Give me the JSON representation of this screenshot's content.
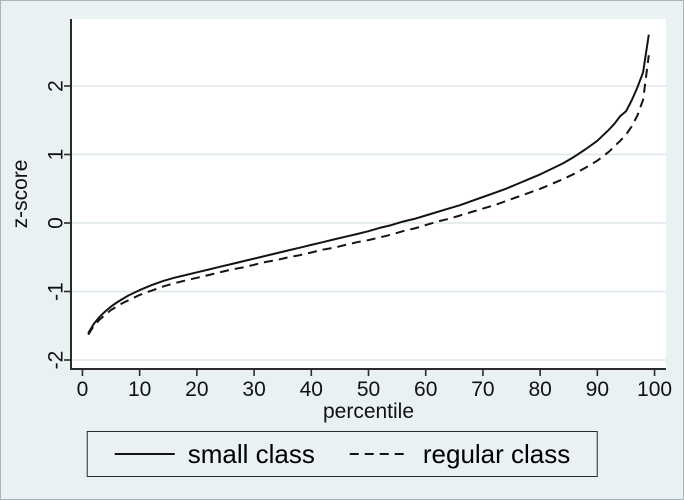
{
  "chart_data": {
    "type": "line",
    "title": "",
    "xlabel": "percentile",
    "ylabel": "z-score",
    "xlim": [
      0,
      100
    ],
    "ylim": [
      -2,
      2.8
    ],
    "xticks": [
      0,
      10,
      20,
      30,
      40,
      50,
      60,
      70,
      80,
      90,
      100
    ],
    "yticks": [
      -2,
      -1,
      0,
      1,
      2
    ],
    "grid": "horizontal-only",
    "legend_position": "bottom-center",
    "colors": {
      "background": "#eaf1f2",
      "plot_background": "#ffffff",
      "gridline": "#dde7ea",
      "axis": "#2b2b2b",
      "line": "#141414",
      "text": "#111111"
    },
    "series": [
      {
        "name": "small class",
        "line_style": "solid",
        "points": [
          [
            1,
            -1.61
          ],
          [
            2,
            -1.47
          ],
          [
            3,
            -1.37
          ],
          [
            4,
            -1.29
          ],
          [
            5,
            -1.22
          ],
          [
            6,
            -1.16
          ],
          [
            7,
            -1.11
          ],
          [
            8,
            -1.06
          ],
          [
            9,
            -1.02
          ],
          [
            10,
            -0.98
          ],
          [
            12,
            -0.91
          ],
          [
            14,
            -0.85
          ],
          [
            16,
            -0.8
          ],
          [
            18,
            -0.76
          ],
          [
            20,
            -0.72
          ],
          [
            22,
            -0.68
          ],
          [
            24,
            -0.64
          ],
          [
            26,
            -0.6
          ],
          [
            28,
            -0.56
          ],
          [
            30,
            -0.52
          ],
          [
            32,
            -0.48
          ],
          [
            34,
            -0.44
          ],
          [
            36,
            -0.4
          ],
          [
            38,
            -0.36
          ],
          [
            40,
            -0.32
          ],
          [
            42,
            -0.28
          ],
          [
            44,
            -0.24
          ],
          [
            46,
            -0.2
          ],
          [
            48,
            -0.16
          ],
          [
            50,
            -0.12
          ],
          [
            52,
            -0.07
          ],
          [
            54,
            -0.03
          ],
          [
            56,
            0.02
          ],
          [
            58,
            0.06
          ],
          [
            60,
            0.11
          ],
          [
            62,
            0.16
          ],
          [
            64,
            0.21
          ],
          [
            66,
            0.26
          ],
          [
            68,
            0.32
          ],
          [
            70,
            0.38
          ],
          [
            72,
            0.44
          ],
          [
            74,
            0.5
          ],
          [
            76,
            0.57
          ],
          [
            78,
            0.64
          ],
          [
            80,
            0.71
          ],
          [
            82,
            0.79
          ],
          [
            84,
            0.87
          ],
          [
            86,
            0.97
          ],
          [
            88,
            1.08
          ],
          [
            90,
            1.2
          ],
          [
            92,
            1.36
          ],
          [
            93,
            1.45
          ],
          [
            94,
            1.56
          ],
          [
            95,
            1.63
          ],
          [
            96,
            1.79
          ],
          [
            97,
            1.98
          ],
          [
            98,
            2.2
          ],
          [
            99,
            2.75
          ]
        ]
      },
      {
        "name": "regular class",
        "line_style": "dashed",
        "points": [
          [
            1,
            -1.63
          ],
          [
            2,
            -1.5
          ],
          [
            3,
            -1.41
          ],
          [
            4,
            -1.34
          ],
          [
            5,
            -1.27
          ],
          [
            6,
            -1.22
          ],
          [
            7,
            -1.17
          ],
          [
            8,
            -1.13
          ],
          [
            9,
            -1.09
          ],
          [
            10,
            -1.05
          ],
          [
            12,
            -0.99
          ],
          [
            14,
            -0.93
          ],
          [
            16,
            -0.88
          ],
          [
            18,
            -0.84
          ],
          [
            20,
            -0.8
          ],
          [
            22,
            -0.76
          ],
          [
            24,
            -0.72
          ],
          [
            26,
            -0.68
          ],
          [
            28,
            -0.65
          ],
          [
            30,
            -0.61
          ],
          [
            32,
            -0.57
          ],
          [
            34,
            -0.54
          ],
          [
            36,
            -0.5
          ],
          [
            38,
            -0.47
          ],
          [
            40,
            -0.43
          ],
          [
            42,
            -0.39
          ],
          [
            44,
            -0.36
          ],
          [
            46,
            -0.32
          ],
          [
            48,
            -0.28
          ],
          [
            50,
            -0.25
          ],
          [
            52,
            -0.21
          ],
          [
            54,
            -0.17
          ],
          [
            56,
            -0.12
          ],
          [
            58,
            -0.08
          ],
          [
            60,
            -0.03
          ],
          [
            62,
            0.02
          ],
          [
            64,
            0.06
          ],
          [
            66,
            0.11
          ],
          [
            68,
            0.16
          ],
          [
            70,
            0.21
          ],
          [
            72,
            0.26
          ],
          [
            74,
            0.32
          ],
          [
            76,
            0.38
          ],
          [
            78,
            0.44
          ],
          [
            80,
            0.5
          ],
          [
            82,
            0.57
          ],
          [
            84,
            0.64
          ],
          [
            86,
            0.72
          ],
          [
            88,
            0.81
          ],
          [
            90,
            0.91
          ],
          [
            92,
            1.04
          ],
          [
            94,
            1.2
          ],
          [
            95,
            1.29
          ],
          [
            96,
            1.41
          ],
          [
            97,
            1.57
          ],
          [
            98,
            1.8
          ],
          [
            99,
            2.45
          ]
        ]
      }
    ]
  }
}
